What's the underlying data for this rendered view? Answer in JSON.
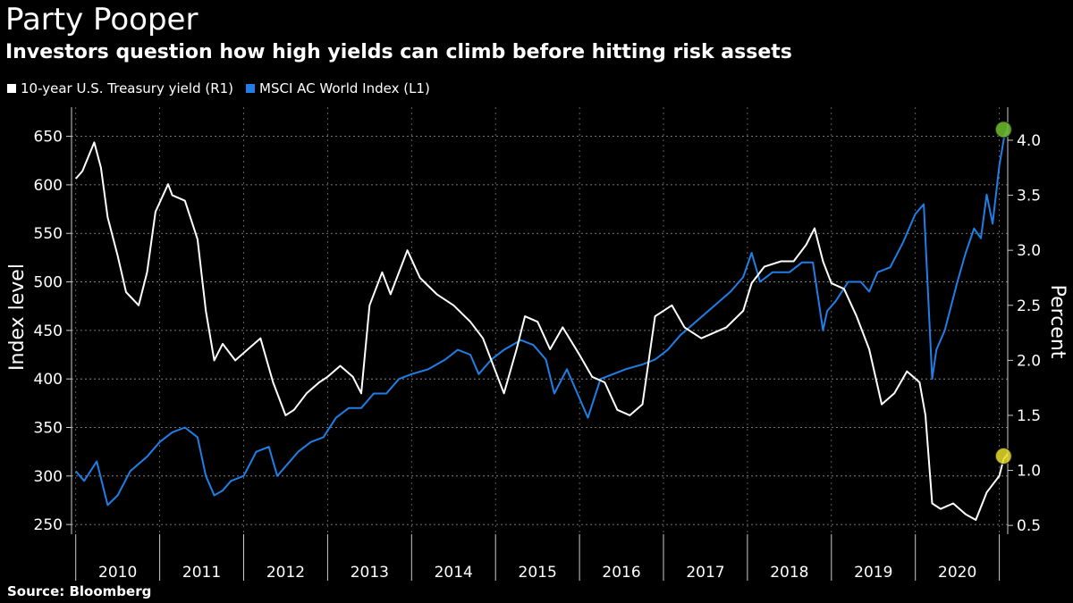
{
  "chart_data": {
    "type": "line",
    "title": "Party Pooper",
    "subtitle": "Investors question how high yields can climb before hitting risk assets",
    "source": "Source: Bloomberg",
    "ylabel_left": "Index level",
    "ylabel_right": "Percent",
    "x_categories": [
      "2010",
      "2011",
      "2012",
      "2013",
      "2014",
      "2015",
      "2016",
      "2017",
      "2018",
      "2019",
      "2020"
    ],
    "x_range": [
      2009.95,
      2021.1
    ],
    "y_left": {
      "ticks": [
        250,
        300,
        350,
        400,
        450,
        500,
        550,
        600,
        650
      ],
      "range": [
        240,
        680
      ]
    },
    "y_right": {
      "ticks": [
        "0.5",
        "1.0",
        "1.5",
        "2.0",
        "2.5",
        "3.0",
        "3.5",
        "4.0"
      ],
      "range": [
        0.42,
        4.3
      ]
    },
    "grid": "horizontal dashed",
    "legend_position": "top-left",
    "series": [
      {
        "name": "10-year U.S. Treasury yield (R1)",
        "axis": "right",
        "color": "#ffffff",
        "points": [
          [
            2010.0,
            3.65
          ],
          [
            2010.08,
            3.72
          ],
          [
            2010.22,
            3.98
          ],
          [
            2010.3,
            3.75
          ],
          [
            2010.38,
            3.3
          ],
          [
            2010.5,
            2.95
          ],
          [
            2010.6,
            2.62
          ],
          [
            2010.75,
            2.5
          ],
          [
            2010.85,
            2.8
          ],
          [
            2010.95,
            3.35
          ],
          [
            2011.1,
            3.6
          ],
          [
            2011.15,
            3.5
          ],
          [
            2011.3,
            3.45
          ],
          [
            2011.45,
            3.1
          ],
          [
            2011.55,
            2.45
          ],
          [
            2011.65,
            2.0
          ],
          [
            2011.75,
            2.15
          ],
          [
            2011.9,
            2.0
          ],
          [
            2012.05,
            2.1
          ],
          [
            2012.2,
            2.2
          ],
          [
            2012.35,
            1.8
          ],
          [
            2012.5,
            1.5
          ],
          [
            2012.6,
            1.55
          ],
          [
            2012.75,
            1.7
          ],
          [
            2012.9,
            1.8
          ],
          [
            2013.0,
            1.85
          ],
          [
            2013.15,
            1.95
          ],
          [
            2013.3,
            1.85
          ],
          [
            2013.4,
            1.7
          ],
          [
            2013.5,
            2.5
          ],
          [
            2013.65,
            2.8
          ],
          [
            2013.75,
            2.6
          ],
          [
            2013.95,
            3.0
          ],
          [
            2014.1,
            2.75
          ],
          [
            2014.3,
            2.6
          ],
          [
            2014.5,
            2.5
          ],
          [
            2014.7,
            2.35
          ],
          [
            2014.85,
            2.2
          ],
          [
            2015.0,
            1.9
          ],
          [
            2015.1,
            1.7
          ],
          [
            2015.25,
            2.1
          ],
          [
            2015.35,
            2.4
          ],
          [
            2015.5,
            2.35
          ],
          [
            2015.65,
            2.1
          ],
          [
            2015.8,
            2.3
          ],
          [
            2016.0,
            2.05
          ],
          [
            2016.15,
            1.85
          ],
          [
            2016.3,
            1.8
          ],
          [
            2016.45,
            1.55
          ],
          [
            2016.6,
            1.5
          ],
          [
            2016.75,
            1.6
          ],
          [
            2016.9,
            2.4
          ],
          [
            2017.0,
            2.45
          ],
          [
            2017.1,
            2.5
          ],
          [
            2017.25,
            2.3
          ],
          [
            2017.45,
            2.2
          ],
          [
            2017.6,
            2.25
          ],
          [
            2017.75,
            2.3
          ],
          [
            2017.95,
            2.45
          ],
          [
            2018.05,
            2.7
          ],
          [
            2018.2,
            2.85
          ],
          [
            2018.4,
            2.9
          ],
          [
            2018.55,
            2.9
          ],
          [
            2018.7,
            3.05
          ],
          [
            2018.8,
            3.2
          ],
          [
            2018.9,
            2.9
          ],
          [
            2019.0,
            2.7
          ],
          [
            2019.15,
            2.65
          ],
          [
            2019.3,
            2.4
          ],
          [
            2019.45,
            2.1
          ],
          [
            2019.6,
            1.6
          ],
          [
            2019.75,
            1.7
          ],
          [
            2019.9,
            1.9
          ],
          [
            2020.05,
            1.8
          ],
          [
            2020.12,
            1.5
          ],
          [
            2020.2,
            0.7
          ],
          [
            2020.3,
            0.65
          ],
          [
            2020.45,
            0.7
          ],
          [
            2020.6,
            0.6
          ],
          [
            2020.72,
            0.55
          ],
          [
            2020.85,
            0.8
          ],
          [
            2021.0,
            0.95
          ],
          [
            2021.05,
            1.1
          ],
          [
            2021.1,
            1.15
          ]
        ]
      },
      {
        "name": "MSCI AC World Index (L1)",
        "axis": "left",
        "color": "#1f7fe6",
        "points": [
          [
            2010.0,
            305
          ],
          [
            2010.1,
            295
          ],
          [
            2010.25,
            315
          ],
          [
            2010.38,
            270
          ],
          [
            2010.5,
            280
          ],
          [
            2010.65,
            305
          ],
          [
            2010.85,
            320
          ],
          [
            2011.0,
            335
          ],
          [
            2011.15,
            345
          ],
          [
            2011.3,
            350
          ],
          [
            2011.45,
            340
          ],
          [
            2011.55,
            300
          ],
          [
            2011.65,
            280
          ],
          [
            2011.75,
            285
          ],
          [
            2011.85,
            295
          ],
          [
            2012.0,
            300
          ],
          [
            2012.15,
            325
          ],
          [
            2012.3,
            330
          ],
          [
            2012.4,
            300
          ],
          [
            2012.5,
            310
          ],
          [
            2012.65,
            325
          ],
          [
            2012.8,
            335
          ],
          [
            2012.95,
            340
          ],
          [
            2013.1,
            360
          ],
          [
            2013.25,
            370
          ],
          [
            2013.4,
            370
          ],
          [
            2013.55,
            385
          ],
          [
            2013.7,
            385
          ],
          [
            2013.85,
            400
          ],
          [
            2014.0,
            405
          ],
          [
            2014.2,
            410
          ],
          [
            2014.4,
            420
          ],
          [
            2014.55,
            430
          ],
          [
            2014.7,
            425
          ],
          [
            2014.8,
            405
          ],
          [
            2014.95,
            420
          ],
          [
            2015.1,
            430
          ],
          [
            2015.3,
            440
          ],
          [
            2015.45,
            435
          ],
          [
            2015.6,
            420
          ],
          [
            2015.7,
            385
          ],
          [
            2015.85,
            410
          ],
          [
            2016.0,
            380
          ],
          [
            2016.1,
            360
          ],
          [
            2016.25,
            400
          ],
          [
            2016.4,
            405
          ],
          [
            2016.55,
            410
          ],
          [
            2016.75,
            415
          ],
          [
            2016.9,
            420
          ],
          [
            2017.05,
            430
          ],
          [
            2017.2,
            445
          ],
          [
            2017.4,
            460
          ],
          [
            2017.6,
            475
          ],
          [
            2017.8,
            490
          ],
          [
            2017.95,
            505
          ],
          [
            2018.05,
            530
          ],
          [
            2018.15,
            500
          ],
          [
            2018.3,
            510
          ],
          [
            2018.5,
            510
          ],
          [
            2018.65,
            520
          ],
          [
            2018.78,
            520
          ],
          [
            2018.9,
            450
          ],
          [
            2018.95,
            470
          ],
          [
            2019.05,
            480
          ],
          [
            2019.2,
            500
          ],
          [
            2019.35,
            500
          ],
          [
            2019.45,
            490
          ],
          [
            2019.55,
            510
          ],
          [
            2019.7,
            515
          ],
          [
            2019.85,
            540
          ],
          [
            2020.0,
            570
          ],
          [
            2020.1,
            580
          ],
          [
            2020.2,
            400
          ],
          [
            2020.25,
            430
          ],
          [
            2020.35,
            450
          ],
          [
            2020.5,
            500
          ],
          [
            2020.6,
            530
          ],
          [
            2020.7,
            555
          ],
          [
            2020.78,
            545
          ],
          [
            2020.85,
            590
          ],
          [
            2020.92,
            560
          ],
          [
            2021.0,
            620
          ],
          [
            2021.06,
            650
          ],
          [
            2021.1,
            658
          ]
        ]
      }
    ],
    "markers": [
      {
        "series": "MSCI AC World Index (L1)",
        "x": 2021.05,
        "value": 657,
        "axis": "left",
        "color": "#6fbf2c"
      },
      {
        "series": "10-year U.S. Treasury yield (R1)",
        "x": 2021.05,
        "value": 1.13,
        "axis": "right",
        "color": "#e8dc2a"
      }
    ]
  }
}
